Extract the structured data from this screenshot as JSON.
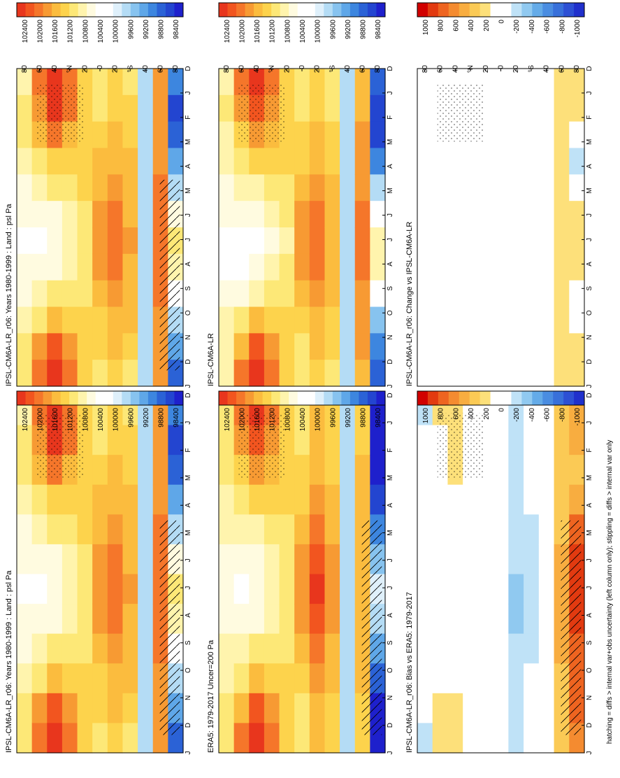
{
  "figure": {
    "footnote": "hatching = diffs > internal var+obs uncertainty (left column only); stippling = diffs > internal var only"
  },
  "chart_data": [
    {
      "type": "heatmap",
      "title": "IPSL-CM6A-LR_r06: Years 1980-1999 : Land : psl Pa",
      "months": [
        "D",
        "J",
        "F",
        "M",
        "A",
        "M",
        "J",
        "J",
        "A",
        "S",
        "O",
        "N",
        "D",
        "J"
      ],
      "lat_ticks": [
        "80",
        "60",
        "40",
        "°N",
        "20",
        "0",
        "20",
        "°S",
        "40",
        "60",
        "80"
      ],
      "colorbar": {
        "labels": [
          "102400",
          "102000",
          "101600",
          "101200",
          "100800",
          "100400",
          "100000",
          "99600",
          "99200",
          "98800",
          "98400"
        ]
      },
      "hatched": true,
      "stippled": true,
      "cells": {
        "kind": "abs",
        "z": [
          [
            100900,
            101000,
            100950,
            100800,
            100700,
            100600,
            100500,
            100550,
            100700,
            100850,
            100950,
            100950
          ],
          [
            101900,
            101700,
            101350,
            101000,
            100800,
            100600,
            100500,
            100550,
            100750,
            101100,
            101600,
            101900
          ],
          [
            102350,
            102200,
            101800,
            101300,
            100950,
            100700,
            100550,
            100650,
            100950,
            101500,
            102100,
            102350
          ],
          [
            101900,
            101800,
            101550,
            101300,
            101100,
            100900,
            100750,
            100800,
            101000,
            101300,
            101650,
            101850
          ],
          [
            101300,
            101300,
            101250,
            101200,
            101150,
            101050,
            100950,
            101000,
            101100,
            101250,
            101300,
            101300
          ],
          [
            101050,
            101100,
            101200,
            101350,
            101500,
            101650,
            101750,
            101700,
            101500,
            101300,
            101150,
            101050
          ],
          [
            101250,
            101300,
            101400,
            101550,
            101700,
            101850,
            101950,
            101900,
            101750,
            101550,
            101400,
            101300
          ],
          [
            101100,
            101150,
            101250,
            101350,
            101450,
            101550,
            101600,
            101550,
            101450,
            101350,
            101200,
            101100
          ],
          [
            100000,
            100050,
            100050,
            100000,
            99950,
            99950,
            99950,
            99950,
            99950,
            100000,
            100000,
            100000
          ],
          [
            101600,
            101600,
            101650,
            101700,
            101800,
            101900,
            101950,
            101900,
            101800,
            101700,
            101650,
            101600
          ],
          [
            99300,
            99000,
            99100,
            99500,
            100000,
            100600,
            101000,
            100900,
            100400,
            99900,
            99500,
            99200
          ]
        ]
      }
    },
    {
      "type": "heatmap",
      "title": "IPSL-CM6A-LR",
      "months": [
        "D",
        "J",
        "F",
        "M",
        "A",
        "M",
        "J",
        "J",
        "A",
        "S",
        "O",
        "N",
        "D",
        "J"
      ],
      "lat_ticks": [
        "80",
        "60",
        "40",
        "°N",
        "20",
        "0",
        "20",
        "°S",
        "40",
        "60",
        "80"
      ],
      "colorbar": {
        "labels": [
          "102400",
          "102000",
          "101600",
          "101200",
          "100800",
          "100400",
          "100000",
          "99600",
          "99200",
          "98800",
          "98400"
        ]
      },
      "hatched": false,
      "stippled": true,
      "cells": {
        "kind": "abs",
        "z": [
          [
            100850,
            100950,
            100900,
            100800,
            100650,
            100550,
            100450,
            100500,
            100650,
            100800,
            100900,
            100900
          ],
          [
            101850,
            101650,
            101300,
            100950,
            100750,
            100550,
            100450,
            100500,
            100700,
            101050,
            101550,
            101850
          ],
          [
            102300,
            102150,
            101750,
            101250,
            100900,
            100650,
            100500,
            100600,
            100900,
            101450,
            102050,
            102300
          ],
          [
            101850,
            101750,
            101500,
            101250,
            101050,
            100850,
            100700,
            100750,
            100950,
            101250,
            101600,
            101800
          ],
          [
            101250,
            101250,
            101200,
            101150,
            101100,
            101000,
            100900,
            100950,
            101050,
            101200,
            101250,
            101250
          ],
          [
            101000,
            101050,
            101150,
            101300,
            101450,
            101600,
            101700,
            101650,
            101450,
            101250,
            101100,
            101000
          ],
          [
            101200,
            101250,
            101350,
            101500,
            101650,
            101800,
            101900,
            101850,
            101700,
            101500,
            101350,
            101250
          ],
          [
            101050,
            101100,
            101200,
            101300,
            101400,
            101500,
            101550,
            101500,
            101400,
            101300,
            101150,
            101050
          ],
          [
            100000,
            100050,
            100050,
            100000,
            99950,
            99950,
            99950,
            99950,
            99950,
            100000,
            100000,
            100000
          ],
          [
            101500,
            101550,
            101600,
            101650,
            101750,
            101850,
            101900,
            101850,
            101750,
            101650,
            101600,
            101550
          ],
          [
            99200,
            98900,
            99000,
            99400,
            99900,
            100500,
            100900,
            100800,
            100300,
            99800,
            99400,
            99100
          ]
        ]
      }
    },
    {
      "type": "heatmap",
      "title": "ERA5: 1979-2017 Uncer=200 Pa",
      "months": [
        "D",
        "J",
        "F",
        "M",
        "A",
        "M",
        "J",
        "J",
        "A",
        "S",
        "O",
        "N",
        "D",
        "J"
      ],
      "lat_ticks": [
        "80",
        "60",
        "40",
        "°N",
        "20",
        "0",
        "20",
        "°S",
        "40",
        "60",
        "80"
      ],
      "colorbar": {
        "labels": [
          "102400",
          "102000",
          "101600",
          "101200",
          "100800",
          "100400",
          "100000",
          "99600",
          "99200",
          "98800",
          "98400"
        ]
      },
      "hatched": true,
      "stippled": true,
      "cells": {
        "kind": "abs",
        "z": [
          [
            101000,
            101050,
            101000,
            100850,
            100750,
            100650,
            100550,
            100600,
            100750,
            100900,
            101000,
            101000
          ],
          [
            101800,
            101650,
            101300,
            100950,
            100750,
            100600,
            100500,
            100550,
            100750,
            101050,
            101500,
            101800
          ],
          [
            102250,
            102100,
            101700,
            101250,
            100900,
            100650,
            100550,
            100650,
            100950,
            101450,
            102000,
            102250
          ],
          [
            101850,
            101750,
            101500,
            101250,
            101050,
            100850,
            100750,
            100800,
            101000,
            101300,
            101600,
            101800
          ],
          [
            101250,
            101250,
            101200,
            101150,
            101100,
            101000,
            100950,
            101000,
            101100,
            101200,
            101250,
            101250
          ],
          [
            101000,
            101050,
            101150,
            101300,
            101450,
            101600,
            101700,
            101650,
            101450,
            101250,
            101100,
            101000
          ],
          [
            101350,
            101400,
            101500,
            101650,
            101850,
            102050,
            102200,
            102150,
            101950,
            101700,
            101500,
            101400
          ],
          [
            101150,
            101200,
            101300,
            101400,
            101550,
            101650,
            101700,
            101650,
            101550,
            101400,
            101250,
            101150
          ],
          [
            100000,
            100050,
            100050,
            100000,
            99950,
            99950,
            99950,
            99950,
            99950,
            100000,
            100000,
            100000
          ],
          [
            101300,
            101300,
            101350,
            101400,
            101450,
            101500,
            101500,
            101450,
            101400,
            101350,
            101300,
            101300
          ],
          [
            98700,
            98600,
            98800,
            99000,
            99300,
            99700,
            100100,
            100000,
            99600,
            99200,
            98800,
            98600
          ]
        ]
      }
    },
    {
      "type": "heatmap",
      "title": "IPSL-CM6A-LR_r06: Bias vs ERA5: 1979-2017",
      "months": [
        "D",
        "J",
        "F",
        "M",
        "A",
        "M",
        "J",
        "J",
        "A",
        "S",
        "O",
        "N",
        "D",
        "J"
      ],
      "lat_ticks": [
        "80",
        "60",
        "40",
        "°N",
        "20",
        "0",
        "20",
        "°S",
        "40",
        "60",
        "80"
      ],
      "colorbar": {
        "labels": [
          "1000",
          "800",
          "600",
          "400",
          "200",
          "0",
          "-200",
          "-400",
          "-600",
          "-800",
          "-1000"
        ]
      },
      "hatched": true,
      "stippled": true,
      "cells": {
        "kind": "diff",
        "z": [
          [
            -100,
            -50,
            -50,
            -50,
            -50,
            -50,
            -50,
            -50,
            -50,
            -50,
            -50,
            -100
          ],
          [
            100,
            50,
            50,
            50,
            50,
            0,
            0,
            0,
            0,
            50,
            100,
            100
          ],
          [
            100,
            100,
            100,
            50,
            50,
            50,
            0,
            0,
            0,
            50,
            100,
            100
          ],
          [
            50,
            50,
            50,
            50,
            50,
            50,
            0,
            0,
            0,
            0,
            50,
            50
          ],
          [
            50,
            50,
            50,
            50,
            50,
            50,
            0,
            0,
            0,
            50,
            50,
            50
          ],
          [
            0,
            0,
            0,
            0,
            0,
            0,
            0,
            0,
            0,
            0,
            0,
            0
          ],
          [
            -100,
            -100,
            -100,
            -100,
            -150,
            -200,
            -250,
            -250,
            -200,
            -150,
            -100,
            -100
          ],
          [
            -50,
            -50,
            -50,
            -50,
            -100,
            -100,
            -100,
            -100,
            -100,
            -50,
            -50,
            -50
          ],
          [
            0,
            0,
            0,
            0,
            0,
            0,
            0,
            0,
            0,
            0,
            0,
            0
          ],
          [
            300,
            300,
            300,
            300,
            350,
            400,
            450,
            450,
            400,
            350,
            300,
            300
          ],
          [
            500,
            400,
            300,
            500,
            700,
            900,
            900,
            900,
            700,
            700,
            700,
            600
          ]
        ]
      }
    },
    {
      "type": "heatmap",
      "title": "IPSL-CM6A-LR_r06: Change vs IPSL-CM6A-LR",
      "months": [
        "D",
        "J",
        "F",
        "M",
        "A",
        "M",
        "J",
        "J",
        "A",
        "S",
        "O",
        "N",
        "D",
        "J"
      ],
      "lat_ticks": [
        "80",
        "60",
        "40",
        "°N",
        "20",
        "0",
        "20",
        "°S",
        "40",
        "60",
        "80"
      ],
      "colorbar": {
        "labels": [
          "1000",
          "800",
          "600",
          "400",
          "200",
          "0",
          "-200",
          "-400",
          "-600",
          "-800",
          "-1000"
        ]
      },
      "hatched": false,
      "stippled": true,
      "cells": {
        "kind": "diff",
        "z": [
          [
            50,
            50,
            50,
            0,
            50,
            50,
            50,
            50,
            50,
            50,
            50,
            0
          ],
          [
            50,
            50,
            50,
            0,
            0,
            0,
            0,
            0,
            0,
            50,
            50,
            50
          ],
          [
            50,
            50,
            50,
            50,
            50,
            50,
            50,
            50,
            50,
            50,
            50,
            50
          ],
          [
            50,
            50,
            50,
            50,
            50,
            50,
            50,
            50,
            50,
            50,
            50,
            50
          ],
          [
            50,
            50,
            50,
            50,
            50,
            50,
            0,
            0,
            0,
            0,
            50,
            50
          ],
          [
            0,
            0,
            0,
            0,
            0,
            0,
            0,
            0,
            0,
            0,
            0,
            0
          ],
          [
            50,
            50,
            50,
            50,
            50,
            50,
            50,
            50,
            50,
            50,
            50,
            50
          ],
          [
            50,
            50,
            50,
            0,
            0,
            0,
            0,
            0,
            0,
            0,
            0,
            50
          ],
          [
            0,
            0,
            0,
            0,
            0,
            0,
            0,
            0,
            0,
            0,
            0,
            0
          ],
          [
            100,
            100,
            100,
            100,
            100,
            100,
            100,
            100,
            100,
            100,
            100,
            100
          ],
          [
            100,
            100,
            0,
            -100,
            0,
            100,
            100,
            100,
            0,
            0,
            100,
            100
          ]
        ]
      }
    }
  ]
}
